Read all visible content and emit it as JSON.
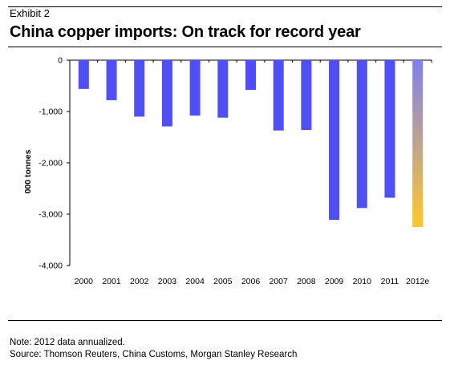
{
  "header": {
    "exhibit": "Exhibit 2",
    "title": "China copper imports: On track for record year"
  },
  "footer": {
    "note": "Note: 2012 data annualized.",
    "source": "Source: Thomson Reuters, China Customs, Morgan Stanley Research"
  },
  "chart_data": {
    "type": "bar",
    "title": "China copper imports: On track for record year",
    "ylabel": "000 tonnes",
    "xlabel": "",
    "categories": [
      "2000",
      "2001",
      "2002",
      "2003",
      "2004",
      "2005",
      "2006",
      "2007",
      "2008",
      "2009",
      "2010",
      "2011",
      "2012e"
    ],
    "values": [
      -560,
      -780,
      -1100,
      -1290,
      -1080,
      -1120,
      -580,
      -1370,
      -1360,
      -3110,
      -2880,
      -2680,
      -3250
    ],
    "ylim": [
      -4000,
      0
    ],
    "yticks": [
      0,
      -1000,
      -2000,
      -3000,
      -4000
    ],
    "ytick_labels": [
      "0",
      "-1,000",
      "-2,000",
      "-3,000",
      "-4,000"
    ],
    "grid": false,
    "legend": "none",
    "bar_color": "#4f4ff5",
    "highlight_bar": {
      "category": "2012e",
      "gradient_top": "#8080f0",
      "gradient_bottom": "#ffc82a"
    }
  }
}
